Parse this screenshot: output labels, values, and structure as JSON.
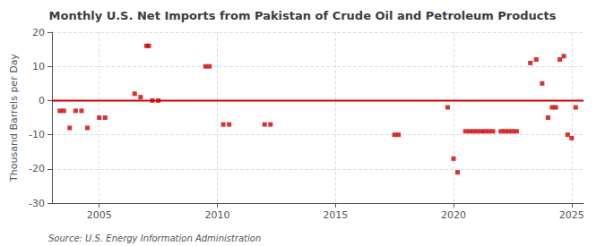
{
  "chart_data": {
    "type": "scatter",
    "title": "Monthly U.S. Net Imports from Pakistan of Crude Oil and Petroleum Products",
    "ylabel": "Thousand Barrels per Day",
    "annotations": [
      "Source: U.S. Energy Information Administration"
    ],
    "xlim": [
      2003.0,
      2025.5
    ],
    "xticks": [
      2005,
      2010,
      2015,
      2020,
      2025
    ],
    "ylim": [
      -30,
      20
    ],
    "yticks": [
      -30,
      -20,
      -10,
      0,
      10,
      20
    ],
    "grid": true,
    "series": [
      {
        "type": "scatter",
        "color": "#cc0000",
        "marker": "square",
        "x": [
          2003.33,
          2003.5,
          2003.75,
          2004.0,
          2004.25,
          2004.5,
          2005.0,
          2005.25,
          2006.5,
          2006.75,
          2007.0,
          2007.1,
          2007.25,
          2007.5,
          2009.5,
          2009.67,
          2010.25,
          2010.5,
          2012.0,
          2012.25,
          2017.5,
          2017.67,
          2019.75,
          2020.0,
          2020.17,
          2020.5,
          2020.67,
          2020.83,
          2021.0,
          2021.17,
          2021.33,
          2021.5,
          2021.67,
          2022.0,
          2022.17,
          2022.33,
          2022.5,
          2022.67,
          2023.25,
          2023.5,
          2023.75,
          2024.0,
          2024.17,
          2024.33,
          2024.5,
          2024.67,
          2024.83,
          2025.0,
          2025.17
        ],
        "values": [
          -3,
          -3,
          -8,
          -3,
          -3,
          -8,
          -5,
          -5,
          2,
          1,
          16,
          16,
          0,
          0,
          10,
          10,
          -7,
          -7,
          -7,
          -7,
          -10,
          -10,
          -2,
          -17,
          -21,
          -9,
          -9,
          -9,
          -9,
          -9,
          -9,
          -9,
          -9,
          -9,
          -9,
          -9,
          -9,
          -9,
          11,
          12,
          5,
          -5,
          -2,
          -2,
          12,
          13,
          -10,
          -11,
          -2
        ]
      },
      {
        "type": "line",
        "color": "#cc0000",
        "x": [
          2003.0,
          2025.5
        ],
        "values": [
          0,
          0
        ]
      }
    ]
  }
}
